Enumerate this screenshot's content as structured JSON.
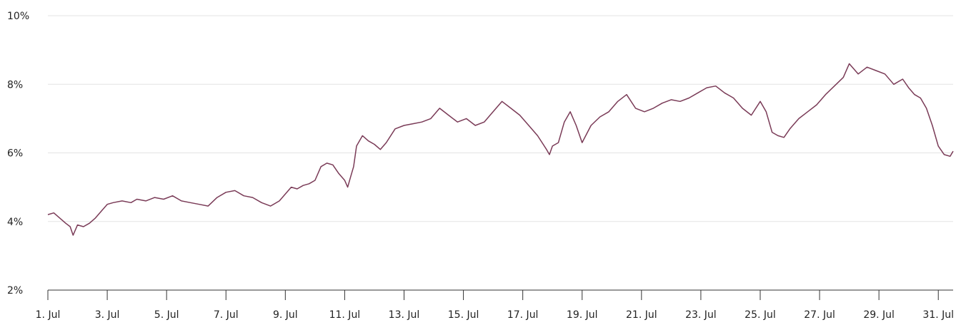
{
  "chart_data": {
    "type": "line",
    "title": "",
    "xlabel": "",
    "ylabel": "",
    "x_range": [
      "1. Jul",
      "31. Jul"
    ],
    "ylim": [
      2,
      10
    ],
    "y_ticks": [
      "2%",
      "4%",
      "6%",
      "8%",
      "10%"
    ],
    "x_ticks": [
      "1. Jul",
      "3. Jul",
      "5. Jul",
      "7. Jul",
      "9. Jul",
      "11. Jul",
      "13. Jul",
      "15. Jul",
      "17. Jul",
      "19. Jul",
      "21. Jul",
      "23. Jul",
      "25. Jul",
      "27. Jul",
      "29. Jul",
      "31. Jul"
    ],
    "grid": true,
    "line_color": "#7a3b57",
    "series": [
      {
        "x_days": [
          1.0,
          1.2,
          1.4,
          1.6,
          1.75,
          1.85,
          2.0,
          2.2,
          2.4,
          2.6,
          2.8,
          3.0,
          3.2,
          3.5,
          3.8,
          4.0,
          4.3,
          4.6,
          4.9,
          5.2,
          5.5,
          5.8,
          6.1,
          6.4,
          6.7,
          7.0,
          7.3,
          7.6,
          7.9,
          8.2,
          8.5,
          8.8,
          9.0,
          9.2,
          9.4,
          9.6,
          9.8,
          10.0,
          10.2,
          10.4,
          10.6,
          10.8,
          11.0,
          11.1,
          11.2,
          11.3,
          11.4,
          11.6,
          11.8,
          12.0,
          12.2,
          12.4,
          12.7,
          13.0,
          13.3,
          13.6,
          13.9,
          14.2,
          14.5,
          14.8,
          15.1,
          15.4,
          15.7,
          16.0,
          16.3,
          16.6,
          16.9,
          17.2,
          17.5,
          17.8,
          17.9,
          18.0,
          18.2,
          18.4,
          18.6,
          18.8,
          19.0,
          19.3,
          19.6,
          19.9,
          20.2,
          20.5,
          20.8,
          21.1,
          21.4,
          21.7,
          22.0,
          22.3,
          22.6,
          22.9,
          23.2,
          23.5,
          23.8,
          24.1,
          24.4,
          24.7,
          25.0,
          25.2,
          25.4,
          25.6,
          25.8,
          26.0,
          26.3,
          26.6,
          26.9,
          27.2,
          27.5,
          27.8,
          28.0,
          28.3,
          28.6,
          28.9,
          29.2,
          29.5,
          29.8,
          30.0,
          30.2,
          30.4,
          30.6,
          30.8,
          31.0,
          31.2,
          31.4,
          31.5
        ],
        "values": [
          4.2,
          4.25,
          4.1,
          3.95,
          3.85,
          3.6,
          3.9,
          3.85,
          3.95,
          4.1,
          4.3,
          4.5,
          4.55,
          4.6,
          4.55,
          4.65,
          4.6,
          4.7,
          4.65,
          4.75,
          4.6,
          4.55,
          4.5,
          4.45,
          4.7,
          4.85,
          4.9,
          4.75,
          4.7,
          4.55,
          4.45,
          4.6,
          4.8,
          5.0,
          4.95,
          5.05,
          5.1,
          5.2,
          5.6,
          5.7,
          5.65,
          5.4,
          5.2,
          5.0,
          5.3,
          5.6,
          6.2,
          6.5,
          6.35,
          6.25,
          6.1,
          6.3,
          6.7,
          6.8,
          6.85,
          6.9,
          7.0,
          7.3,
          7.1,
          6.9,
          7.0,
          6.8,
          6.9,
          7.2,
          7.5,
          7.3,
          7.1,
          6.8,
          6.5,
          6.1,
          5.95,
          6.2,
          6.3,
          6.9,
          7.2,
          6.8,
          6.3,
          6.8,
          7.05,
          7.2,
          7.5,
          7.7,
          7.3,
          7.2,
          7.3,
          7.45,
          7.55,
          7.5,
          7.6,
          7.75,
          7.9,
          7.95,
          7.75,
          7.6,
          7.3,
          7.1,
          7.5,
          7.2,
          6.6,
          6.5,
          6.45,
          6.7,
          7.0,
          7.2,
          7.4,
          7.7,
          7.95,
          8.2,
          8.6,
          8.3,
          8.5,
          8.4,
          8.3,
          8.0,
          8.15,
          7.9,
          7.7,
          7.6,
          7.3,
          6.8,
          6.2,
          5.95,
          5.9,
          6.05
        ]
      }
    ]
  }
}
